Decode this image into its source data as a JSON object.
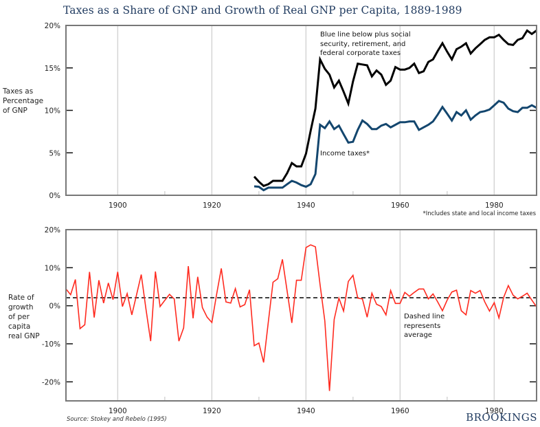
{
  "title": "Taxes as a Share of GNP and Growth of Real GNP per Capita, 1889-1989",
  "source": "Source: Stokey and Rebelo (1995)",
  "brand": "BROOKINGS",
  "colors": {
    "title": "#1f3a5f",
    "total_tax_line": "#000000",
    "income_tax_line": "#13466e",
    "growth_line": "#ff2a1f",
    "average_line": "#000000",
    "gridline": "#d4d4d4",
    "axis": "#777777"
  },
  "chart_data": [
    {
      "type": "line",
      "title": "Taxes as Percentage of GNP",
      "ylabel": "Taxes as Percentage of GNP",
      "xlabel": "",
      "xlim": [
        1889,
        1989
      ],
      "ylim": [
        0,
        20
      ],
      "xticks": [
        1900,
        1920,
        1940,
        1960,
        1980
      ],
      "xtick_labels": [
        "1900",
        "1920",
        "1940",
        "1960",
        "1980"
      ],
      "minor_xticks": [
        1910,
        1930,
        1950,
        1970
      ],
      "yticks": [
        0,
        5,
        10,
        15,
        20
      ],
      "ytick_labels": [
        "0%",
        "5%",
        "10%",
        "15%",
        "20%"
      ],
      "grid": "vertical",
      "annotations": [
        {
          "text": "Blue line below plus social security, retirement, and federal corporate taxes",
          "lines": [
            "Blue line below plus social",
            "security, retirement, and",
            "federal corporate taxes"
          ]
        },
        {
          "text": "Income taxes*"
        }
      ],
      "footnote": "*Includes state and local income taxes",
      "series": [
        {
          "name": "Total taxes (income + social security, retirement, federal corporate)",
          "color": "#000000",
          "x": [
            1929,
            1930,
            1931,
            1932,
            1933,
            1934,
            1935,
            1936,
            1937,
            1938,
            1939,
            1940,
            1941,
            1942,
            1943,
            1944,
            1945,
            1946,
            1947,
            1948,
            1949,
            1950,
            1951,
            1952,
            1953,
            1954,
            1955,
            1956,
            1957,
            1958,
            1959,
            1960,
            1961,
            1962,
            1963,
            1964,
            1965,
            1966,
            1967,
            1968,
            1969,
            1970,
            1971,
            1972,
            1973,
            1974,
            1975,
            1976,
            1977,
            1978,
            1979,
            1980,
            1981,
            1982,
            1983,
            1984,
            1985,
            1986,
            1987,
            1988,
            1989
          ],
          "y": [
            2.2,
            1.6,
            1.1,
            1.3,
            1.7,
            1.7,
            1.7,
            2.6,
            3.8,
            3.4,
            3.4,
            4.9,
            7.6,
            10.2,
            16.0,
            14.9,
            14.2,
            12.7,
            13.5,
            12.2,
            10.8,
            13.4,
            15.5,
            15.4,
            15.3,
            14.0,
            14.7,
            14.2,
            13.0,
            13.5,
            15.1,
            14.8,
            14.8,
            15.0,
            15.5,
            14.4,
            14.6,
            15.7,
            16.0,
            17.0,
            17.9,
            16.9,
            16.0,
            17.2,
            17.5,
            17.9,
            16.7,
            17.3,
            17.8,
            18.3,
            18.6,
            18.6,
            18.9,
            18.3,
            17.8,
            17.7,
            18.3,
            18.5,
            19.4,
            19.0,
            19.4
          ]
        },
        {
          "name": "Income taxes*",
          "color": "#13466e",
          "x": [
            1929,
            1930,
            1931,
            1932,
            1933,
            1934,
            1935,
            1936,
            1937,
            1938,
            1939,
            1940,
            1941,
            1942,
            1943,
            1944,
            1945,
            1946,
            1947,
            1948,
            1949,
            1950,
            1951,
            1952,
            1953,
            1954,
            1955,
            1956,
            1957,
            1958,
            1959,
            1960,
            1961,
            1962,
            1963,
            1964,
            1965,
            1966,
            1967,
            1968,
            1969,
            1970,
            1971,
            1972,
            1973,
            1974,
            1975,
            1976,
            1977,
            1978,
            1979,
            1980,
            1981,
            1982,
            1983,
            1984,
            1985,
            1986,
            1987,
            1988,
            1989
          ],
          "y": [
            1.05,
            1.0,
            0.6,
            0.9,
            0.9,
            0.9,
            0.9,
            1.3,
            1.7,
            1.5,
            1.2,
            1.0,
            1.3,
            2.5,
            8.3,
            7.9,
            8.7,
            7.8,
            8.2,
            7.2,
            6.2,
            6.3,
            7.7,
            8.8,
            8.4,
            7.8,
            7.8,
            8.2,
            8.4,
            8.0,
            8.3,
            8.6,
            8.6,
            8.7,
            8.7,
            7.7,
            8.0,
            8.3,
            8.7,
            9.5,
            10.4,
            9.6,
            8.8,
            9.8,
            9.4,
            10.0,
            8.9,
            9.4,
            9.8,
            9.9,
            10.1,
            10.6,
            11.1,
            10.9,
            10.2,
            9.9,
            9.8,
            10.3,
            10.3,
            10.6,
            10.3
          ]
        }
      ]
    },
    {
      "type": "line",
      "title": "Rate of growth of per capita real GNP",
      "ylabel": "Rate of growth of per capita real GNP",
      "xlabel": "",
      "xlim": [
        1889,
        1989
      ],
      "ylim": [
        -25,
        20
      ],
      "xticks": [
        1900,
        1920,
        1940,
        1960,
        1980
      ],
      "xtick_labels": [
        "1900",
        "1920",
        "1940",
        "1960",
        "1980"
      ],
      "minor_xticks": [
        1910,
        1930,
        1950,
        1970
      ],
      "yticks": [
        -20,
        -10,
        0,
        10,
        20
      ],
      "ytick_labels": [
        "-20%",
        "-10%",
        "0%",
        "10%",
        "20%"
      ],
      "grid": "vertical",
      "average": 2.1,
      "annotations": [
        {
          "text": "Dashed line represents average",
          "lines": [
            "Dashed line",
            "represents",
            "average"
          ]
        }
      ],
      "series": [
        {
          "name": "Growth rate of per capita real GNP",
          "color": "#ff2a1f",
          "x": [
            1889,
            1890,
            1891,
            1892,
            1893,
            1894,
            1895,
            1896,
            1897,
            1898,
            1899,
            1900,
            1901,
            1902,
            1903,
            1904,
            1905,
            1906,
            1907,
            1908,
            1909,
            1910,
            1911,
            1912,
            1913,
            1914,
            1915,
            1916,
            1917,
            1918,
            1919,
            1920,
            1921,
            1922,
            1923,
            1924,
            1925,
            1926,
            1927,
            1928,
            1929,
            1930,
            1931,
            1932,
            1933,
            1934,
            1935,
            1936,
            1937,
            1938,
            1939,
            1940,
            1941,
            1942,
            1943,
            1944,
            1945,
            1946,
            1947,
            1948,
            1949,
            1950,
            1951,
            1952,
            1953,
            1954,
            1955,
            1956,
            1957,
            1958,
            1959,
            1960,
            1961,
            1962,
            1963,
            1964,
            1965,
            1966,
            1967,
            1968,
            1969,
            1970,
            1971,
            1972,
            1973,
            1974,
            1975,
            1976,
            1977,
            1978,
            1979,
            1980,
            1981,
            1982,
            1983,
            1984,
            1985,
            1986,
            1987,
            1988,
            1989
          ],
          "y": [
            4.4,
            2.9,
            6.9,
            -6.0,
            -5.0,
            8.9,
            -3.1,
            6.7,
            0.7,
            6.0,
            1.6,
            8.9,
            -0.2,
            3.2,
            -2.4,
            2.9,
            8.2,
            -0.8,
            -9.3,
            9.0,
            -0.2,
            1.4,
            3.0,
            1.8,
            -9.3,
            -5.8,
            10.4,
            -3.3,
            7.6,
            -0.5,
            -3.0,
            -4.4,
            2.9,
            9.8,
            1.0,
            0.7,
            4.5,
            -0.3,
            0.3,
            4.2,
            -10.5,
            -9.8,
            -14.9,
            -4.2,
            6.2,
            7.1,
            12.2,
            3.9,
            -4.5,
            6.7,
            6.7,
            15.3,
            16.0,
            15.5,
            5.5,
            -4.0,
            -22.4,
            -3.6,
            2.0,
            -1.4,
            6.4,
            8.0,
            2.0,
            1.8,
            -3.0,
            3.3,
            0.4,
            -0.2,
            -2.4,
            4.0,
            0.6,
            0.6,
            3.5,
            2.5,
            3.5,
            4.4,
            4.4,
            1.8,
            3.1,
            1.0,
            -1.3,
            1.5,
            3.6,
            4.1,
            -1.3,
            -2.4,
            4.0,
            3.3,
            4.0,
            1.0,
            -1.4,
            0.8,
            -3.2,
            2.2,
            5.3,
            2.8,
            1.8,
            2.5,
            3.3,
            1.5,
            -0.3
          ]
        }
      ]
    }
  ]
}
